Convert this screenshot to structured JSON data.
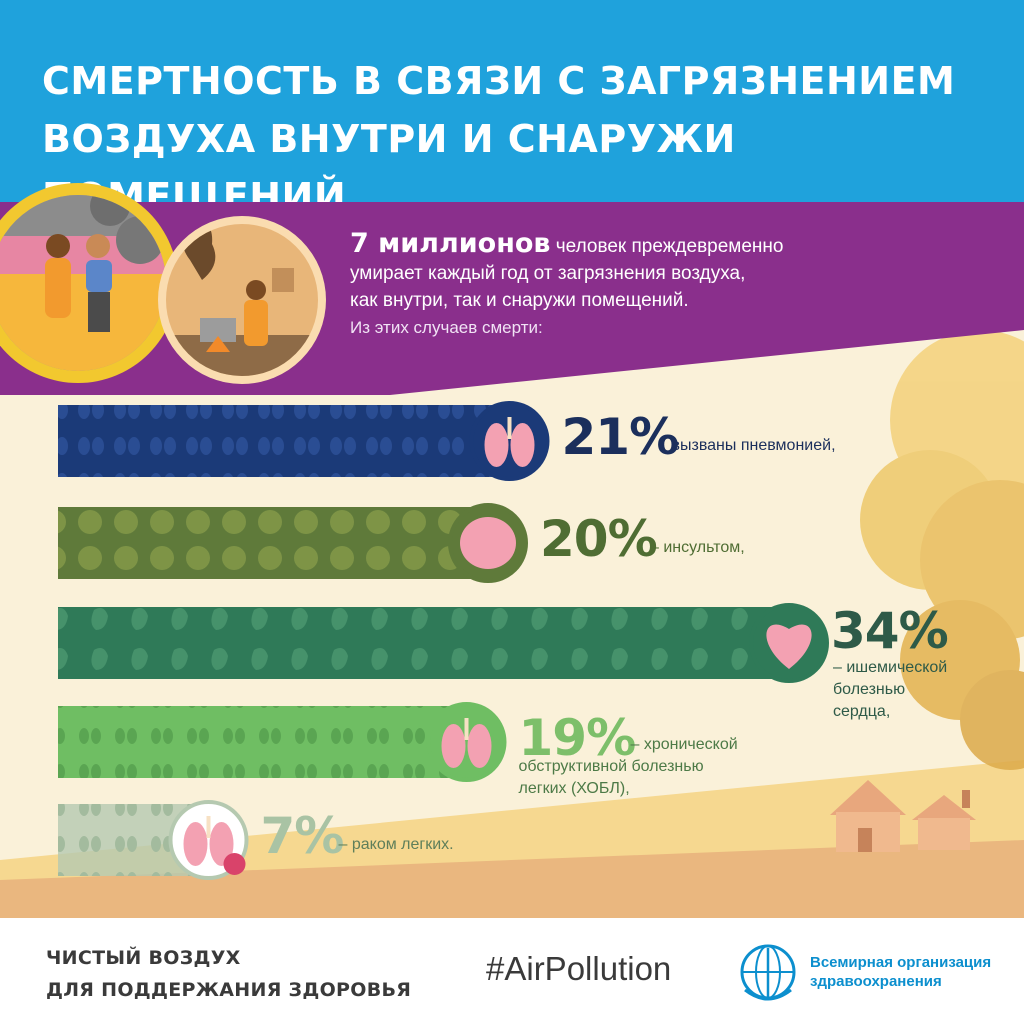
{
  "header": {
    "title_line1": "СМЕРТНОСТЬ В СВЯЗИ С ЗАГРЯЗНЕНИЕМ",
    "title_line2": "ВОЗДУХА ВНУТРИ И СНАРУЖИ ПОМЕЩЕНИЙ",
    "color": "#1fa2dc"
  },
  "intro": {
    "highlight": "7 миллионов",
    "text1": " человек преждевременно",
    "text2": "умирает каждый год от загрязнения воздуха,",
    "text3": "как внутри, так и снаружи помещений.",
    "sub": "Из этих случаев смерти:",
    "band_color": "#8a2f8c"
  },
  "chart_data": {
    "type": "bar",
    "orientation": "horizontal",
    "unit": "%",
    "categories": [
      "вызваны пневмонией,",
      "– инсультом,",
      "– ишемической болезнью сердца,",
      "– хронической обструктивной болезнью легких (ХОБЛ),",
      "– раком легких."
    ],
    "values": [
      21,
      20,
      34,
      19,
      7
    ],
    "labels": [
      "21%",
      "20%",
      "34%",
      "19%",
      "7%"
    ],
    "desc_lines": [
      [
        "вызваны пневмонией,"
      ],
      [
        "– инсультом,"
      ],
      [
        "– ишемической",
        "болезнью",
        "сердца,"
      ],
      [
        "– хронической",
        "обструктивной болезнью",
        "легких (ХОБЛ),"
      ],
      [
        "– раком легких."
      ]
    ],
    "icons": [
      "lungs-icon",
      "brain-icon",
      "heart-icon",
      "lungs-icon",
      "lungs-cancer-icon"
    ],
    "colors": [
      "#1b3a78",
      "#5f7a3a",
      "#2f7a58",
      "#6fbe63",
      "#b5c9b0"
    ],
    "text_colors": [
      "#1b2f5c",
      "#4f6d33",
      "#2e5a48",
      "#7dbf6a",
      "#a9c3a4"
    ]
  },
  "footer": {
    "campaign_line1": "ЧИСТЫЙ ВОЗДУХ",
    "campaign_line2": "ДЛЯ ПОДДЕРЖАНИЯ ЗДОРОВЬЯ",
    "hashtag": "#AirPollution",
    "org_line1": "Всемирная организация",
    "org_line2": "здравоохранения"
  }
}
